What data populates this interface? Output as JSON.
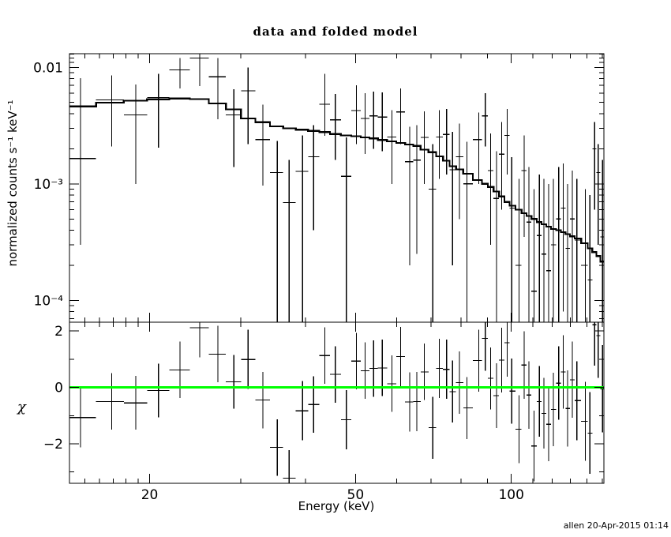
{
  "chart_data": {
    "type": "line",
    "title": "data and folded model",
    "xlabel": "Energy (keV)",
    "footer": "allen 20-Apr-2015 01:14",
    "xscale": "log",
    "xlim": [
      14,
      151
    ],
    "xticks": [
      {
        "v": 20,
        "label": "20"
      },
      {
        "v": 50,
        "label": "50"
      },
      {
        "v": 100,
        "label": "100"
      }
    ],
    "xticks_minor": [
      15,
      16,
      17,
      18,
      19,
      30,
      40,
      60,
      70,
      80,
      90,
      110,
      120,
      130,
      140,
      150
    ],
    "panels": [
      {
        "name": "spectrum",
        "ylabel": "normalized counts s⁻¹ keV⁻¹",
        "yscale": "log",
        "ylim": [
          6.5e-05,
          0.0131
        ],
        "yticks": [
          {
            "v": 0.01,
            "label": "0.01"
          },
          {
            "v": 0.001,
            "label": "10⁻³"
          },
          {
            "v": 0.0001,
            "label": "10⁻⁴"
          }
        ],
        "yticks_minor": [
          0.013,
          0.012,
          0.011,
          0.009,
          0.008,
          0.007,
          0.006,
          0.005,
          0.004,
          0.003,
          0.002,
          0.0009,
          0.0008,
          0.0007,
          0.0006,
          0.0005,
          0.0004,
          0.0003,
          0.0002,
          9e-05,
          8e-05,
          7e-05
        ],
        "model_color": "#000000",
        "data_color": "#000000",
        "model": {
          "E": [
            14.7,
            16.9,
            18.8,
            20.8,
            22.9,
            25.0,
            27.1,
            29.1,
            31.0,
            33.1,
            35.3,
            37.2,
            39.5,
            41.5,
            43.6,
            45.7,
            48.0,
            50.2,
            52.2,
            54.2,
            56.3,
            58.8,
            61.1,
            63.6,
            65.7,
            67.9,
            70.5,
            72.6,
            75.0,
            77.0,
            79.4,
            82.1,
            86.5,
            89.1,
            91.2,
            93.6,
            95.8,
            98.2,
            100.2,
            103.5,
            105.9,
            108.1,
            110.7,
            113.3,
            115.6,
            118.1,
            120.6,
            123.5,
            126.0,
            128.5,
            131.2,
            133.9,
            139.1,
            141.9,
            144.9,
            147.2,
            150.1
          ],
          "v": [
            0.00462,
            0.00498,
            0.00518,
            0.00532,
            0.0054,
            0.00535,
            0.0049,
            0.00435,
            0.00365,
            0.00338,
            0.00312,
            0.003,
            0.00292,
            0.00285,
            0.00278,
            0.00268,
            0.0026,
            0.00256,
            0.0025,
            0.00246,
            0.00238,
            0.00232,
            0.00225,
            0.00218,
            0.00212,
            0.00197,
            0.00187,
            0.00172,
            0.00158,
            0.00142,
            0.00133,
            0.00122,
            0.00108,
            0.001,
            0.00094,
            0.00086,
            0.00078,
            0.0007,
            0.00065,
            0.0006,
            0.00056,
            0.00053,
            0.0005,
            0.00047,
            0.00045,
            0.00043,
            0.00041,
            0.0004,
            0.000385,
            0.00037,
            0.000355,
            0.00034,
            0.00031,
            0.00028,
            0.00026,
            0.00024,
            0.000215
          ]
        },
        "data": {
          "E": [
            14.7,
            16.9,
            18.8,
            20.8,
            22.9,
            25.0,
            27.1,
            29.1,
            31.0,
            33.1,
            35.3,
            37.2,
            39.5,
            41.5,
            43.6,
            45.7,
            48.0,
            50.2,
            52.2,
            54.2,
            56.3,
            58.8,
            61.1,
            63.6,
            65.7,
            67.9,
            70.5,
            72.6,
            75.0,
            77.0,
            79.4,
            82.1,
            86.5,
            89.1,
            91.2,
            93.6,
            95.8,
            98.2,
            100.2,
            103.5,
            105.9,
            108.1,
            110.7,
            113.3,
            115.6,
            118.1,
            120.6,
            123.5,
            126.0,
            128.5,
            131.2,
            133.9,
            139.1,
            141.9,
            144.9,
            147.2,
            150.1
          ],
          "v": [
            0.00165,
            0.00525,
            0.0039,
            0.0055,
            0.0095,
            0.012,
            0.0083,
            0.0039,
            0.0063,
            0.0024,
            0.00125,
            0.00069,
            0.00128,
            0.00171,
            0.00483,
            0.00354,
            0.00116,
            0.00426,
            0.00364,
            0.00383,
            0.00374,
            0.00253,
            0.00415,
            0.00155,
            0.0016,
            0.0025,
            0.0009,
            0.00253,
            0.00266,
            0.00132,
            0.00171,
            0.001,
            0.0024,
            0.00383,
            0.0013,
            0.00075,
            0.0018,
            0.0026,
            0.00062,
            0.0002,
            0.0013,
            0.00047,
            0.00012,
            0.00036,
            0.00025,
            0.00018,
            0.0003,
            0.0005,
            0.00062,
            0.00028,
            0.0005,
            0.00033,
            0.0002,
            0.00015,
            0.002,
            0.00125,
            0.00035
          ],
          "err_lo": [
            0.0003,
            0.0021,
            0.001,
            0.00205,
            0.0066,
            0.0069,
            0.0036,
            0.0014,
            0.0022,
            0.00097,
            6e-05,
            2e-05,
            3e-05,
            0.0004,
            0.00258,
            0.0016,
            2e-05,
            0.0022,
            0.0018,
            0.002,
            0.0019,
            0.001,
            0.0022,
            0.0002,
            0.00025,
            0.001,
            2e-05,
            0.0011,
            0.0012,
            0.0002,
            0.0005,
            2e-05,
            0.001,
            0.0021,
            0.0003,
            2e-05,
            0.0006,
            0.0012,
            2e-05,
            2e-05,
            0.00035,
            2e-05,
            2e-05,
            2e-05,
            2e-05,
            2e-05,
            2e-05,
            2e-05,
            8e-05,
            2e-05,
            6e-05,
            2e-05,
            2e-05,
            2e-05,
            0.0006,
            0.0003,
            2e-05
          ],
          "err_hi": [
            0.0081,
            0.0085,
            0.0071,
            0.0088,
            0.012,
            0.0135,
            0.012,
            0.0065,
            0.01,
            0.0048,
            0.00234,
            0.0016,
            0.0026,
            0.0032,
            0.0088,
            0.0059,
            0.0025,
            0.007,
            0.006,
            0.0062,
            0.0061,
            0.0043,
            0.0066,
            0.0031,
            0.0032,
            0.0042,
            0.0022,
            0.0043,
            0.0044,
            0.0028,
            0.0033,
            0.0023,
            0.0041,
            0.006,
            0.0027,
            0.0019,
            0.0034,
            0.0044,
            0.0017,
            0.0011,
            0.0026,
            0.0014,
            0.0009,
            0.0012,
            0.0011,
            0.001,
            0.0011,
            0.0014,
            0.0015,
            0.001,
            0.0013,
            0.0011,
            0.0009,
            0.0008,
            0.0034,
            0.0022,
            0.0016
          ]
        }
      },
      {
        "name": "residuals",
        "ylabel": "χ",
        "ylim": [
          -3.4,
          2.31
        ],
        "yticks": [
          {
            "v": 2,
            "label": "2"
          },
          {
            "v": 0,
            "label": "0"
          },
          {
            "v": -2,
            "label": "−2"
          }
        ],
        "yticks_minor": [
          1,
          -1,
          -3
        ],
        "zero_line": {
          "y": 0,
          "color": "#00ff00"
        },
        "points": {
          "E": [
            14.7,
            16.9,
            18.8,
            20.8,
            22.9,
            25.0,
            27.1,
            29.1,
            31.0,
            33.1,
            35.3,
            37.2,
            39.5,
            41.5,
            43.6,
            45.7,
            48.0,
            50.2,
            52.2,
            54.2,
            56.3,
            58.8,
            61.1,
            63.6,
            65.7,
            67.9,
            70.5,
            72.6,
            75.0,
            77.0,
            79.4,
            82.1,
            86.5,
            89.1,
            91.2,
            93.6,
            95.8,
            98.2,
            100.2,
            103.5,
            105.9,
            108.1,
            110.7,
            113.3,
            115.6,
            118.1,
            120.6,
            123.5,
            126.0,
            128.5,
            131.2,
            133.9,
            139.1,
            141.9,
            144.9,
            147.2,
            150.1
          ],
          "chi": [
            -1.07,
            -0.5,
            -0.55,
            -0.11,
            0.62,
            2.11,
            1.18,
            0.2,
            0.99,
            -0.45,
            -2.13,
            -3.22,
            -0.83,
            -0.61,
            1.13,
            0.46,
            -1.15,
            0.93,
            0.59,
            0.67,
            0.69,
            0.13,
            1.09,
            -0.52,
            -0.5,
            0.55,
            -1.43,
            0.67,
            0.64,
            -0.15,
            0.17,
            -0.73,
            0.95,
            1.74,
            0.32,
            -0.29,
            0.97,
            1.58,
            -0.13,
            -1.48,
            0.79,
            -0.27,
            -2.08,
            -0.5,
            -0.92,
            -1.31,
            -0.78,
            0.15,
            0.55,
            -0.75,
            0.27,
            -0.47,
            -1.2,
            -1.62,
            2.22,
            1.83,
            -0.05
          ],
          "err": [
            1.06,
            1.0,
            0.95,
            0.95,
            1.0,
            1.05,
            1.0,
            0.95,
            1.05,
            1.0,
            1.0,
            1.0,
            1.05,
            1.0,
            1.0,
            1.0,
            1.05,
            1.0,
            1.0,
            1.0,
            1.0,
            1.0,
            1.05,
            1.05,
            1.05,
            1.0,
            1.1,
            1.05,
            1.05,
            1.1,
            1.1,
            1.1,
            1.1,
            1.15,
            1.1,
            1.15,
            1.15,
            1.2,
            1.15,
            1.2,
            1.2,
            1.2,
            1.25,
            1.25,
            1.25,
            1.3,
            1.3,
            1.3,
            1.3,
            1.35,
            1.35,
            1.4,
            1.4,
            1.45,
            1.45,
            1.5,
            1.55
          ]
        }
      }
    ]
  }
}
